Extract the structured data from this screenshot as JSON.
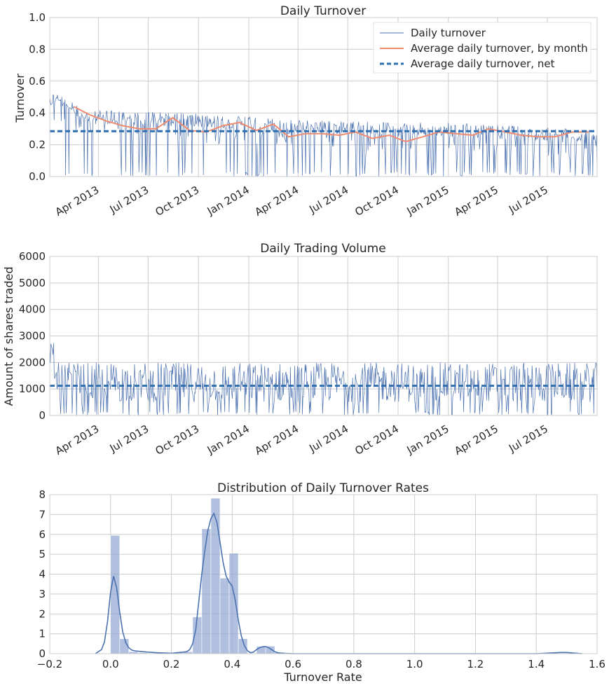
{
  "chart_data": [
    {
      "type": "line",
      "title": "Daily Turnover",
      "xlabel": "",
      "ylabel": "Turnover",
      "ylim": [
        0,
        1.0
      ],
      "yticks": [
        "0.0",
        "0.2",
        "0.4",
        "0.6",
        "0.8",
        "1.0"
      ],
      "xticks": [
        "Apr 2013",
        "Jul 2013",
        "Oct 2013",
        "Jan 2014",
        "Apr 2014",
        "Jul 2014",
        "Oct 2014",
        "Jan 2015",
        "Apr 2015",
        "Jul 2015"
      ],
      "xrange": [
        "2013-01-02",
        "2015-09-30"
      ],
      "grid": true,
      "legend": {
        "placement": "top-right",
        "entries": [
          "Daily turnover",
          "Average daily turnover, by month",
          "Average daily turnover, net"
        ]
      },
      "colors": {
        "daily": "#4c72b0",
        "monthly": "#f08a6e",
        "net": "#2f6fb0"
      },
      "series": [
        {
          "name": "Average daily turnover, by month",
          "x": [
            "2013-02",
            "2013-03",
            "2013-04",
            "2013-05",
            "2013-06",
            "2013-07",
            "2013-08",
            "2013-09",
            "2013-10",
            "2013-11",
            "2013-12",
            "2014-01",
            "2014-02",
            "2014-03",
            "2014-04",
            "2014-05",
            "2014-06",
            "2014-07",
            "2014-08",
            "2014-09",
            "2014-10",
            "2014-11",
            "2014-12",
            "2015-01",
            "2015-02",
            "2015-03",
            "2015-04",
            "2015-05",
            "2015-06",
            "2015-07",
            "2015-08",
            "2015-09"
          ],
          "values": [
            0.44,
            0.39,
            0.35,
            0.32,
            0.3,
            0.3,
            0.37,
            0.29,
            0.28,
            0.32,
            0.34,
            0.29,
            0.33,
            0.25,
            0.27,
            0.27,
            0.26,
            0.28,
            0.24,
            0.26,
            0.22,
            0.25,
            0.28,
            0.27,
            0.26,
            0.3,
            0.28,
            0.26,
            0.25,
            0.25,
            0.28,
            0.28
          ]
        },
        {
          "name": "Average daily turnover, net",
          "values": [
            0.285
          ]
        },
        {
          "name": "Daily turnover",
          "baseline_profile": {
            "x": [
              "2013-01",
              "2013-02",
              "2013-03",
              "2013-06",
              "2013-09",
              "2013-12",
              "2014-03",
              "2014-06",
              "2014-09",
              "2014-12",
              "2015-03",
              "2015-06",
              "2015-09"
            ],
            "values": [
              0.53,
              0.46,
              0.42,
              0.41,
              0.4,
              0.38,
              0.36,
              0.35,
              0.34,
              0.34,
              0.33,
              0.31,
              0.3
            ]
          }
        }
      ]
    },
    {
      "type": "line",
      "title": "Daily Trading Volume",
      "xlabel": "",
      "ylabel": "Amount of shares traded",
      "ylim": [
        0,
        6000
      ],
      "yticks": [
        "0",
        "1000",
        "2000",
        "3000",
        "4000",
        "5000",
        "6000"
      ],
      "xticks": [
        "Apr 2013",
        "Jul 2013",
        "Oct 2013",
        "Jan 2014",
        "Apr 2014",
        "Jul 2014",
        "Oct 2014",
        "Jan 2015",
        "Apr 2015",
        "Jul 2015"
      ],
      "grid": true,
      "colors": {
        "daily": "#4c72b0",
        "mean": "#2f6fb0"
      },
      "series": [
        {
          "name": "Daily volume",
          "range": [
            0,
            2750
          ]
        },
        {
          "name": "Average volume",
          "values": [
            1120
          ]
        }
      ]
    },
    {
      "type": "bar",
      "title": "Distribution of Daily Turnover Rates",
      "xlabel": "Turnover Rate",
      "ylabel": "",
      "xlim": [
        -0.2,
        1.6
      ],
      "ylim": [
        0,
        8
      ],
      "xticks": [
        "−0.2",
        "0.0",
        "0.2",
        "0.4",
        "0.6",
        "0.8",
        "1.0",
        "1.2",
        "1.4",
        "1.6"
      ],
      "yticks": [
        "0",
        "1",
        "2",
        "3",
        "4",
        "5",
        "6",
        "7",
        "8"
      ],
      "grid": true,
      "colors": {
        "bars": "#8ea5d0",
        "kde": "#4c72b0"
      },
      "bins": {
        "left": [
          0.0,
          0.03,
          0.06,
          0.09,
          0.12,
          0.15,
          0.18,
          0.21,
          0.24,
          0.27,
          0.3,
          0.33,
          0.36,
          0.39,
          0.42,
          0.45,
          0.48,
          0.51,
          0.54
        ],
        "values": [
          5.95,
          0.75,
          0.1,
          0.05,
          0.03,
          0.02,
          0.0,
          0.05,
          0.1,
          1.85,
          6.28,
          7.82,
          3.8,
          5.05,
          0.75,
          0.0,
          0.37,
          0.38,
          0.08
        ]
      },
      "kde": {
        "x": [
          -0.05,
          -0.03,
          -0.02,
          -0.01,
          0.0,
          0.01,
          0.02,
          0.03,
          0.04,
          0.05,
          0.06,
          0.07,
          0.08,
          0.1,
          0.12,
          0.15,
          0.18,
          0.2,
          0.22,
          0.24,
          0.25,
          0.26,
          0.27,
          0.28,
          0.29,
          0.3,
          0.31,
          0.32,
          0.33,
          0.34,
          0.35,
          0.36,
          0.37,
          0.38,
          0.39,
          0.4,
          0.41,
          0.42,
          0.43,
          0.44,
          0.45,
          0.46,
          0.47,
          0.48,
          0.49,
          0.5,
          0.51,
          0.52,
          0.53,
          0.54,
          0.55,
          0.56,
          0.58,
          0.6,
          0.8,
          1.0,
          1.2,
          1.4,
          1.45,
          1.48,
          1.5,
          1.52,
          1.55
        ],
        "values": [
          0.0,
          0.2,
          0.6,
          1.6,
          3.1,
          3.9,
          3.3,
          2.1,
          1.1,
          0.55,
          0.3,
          0.18,
          0.14,
          0.11,
          0.08,
          0.05,
          0.03,
          0.02,
          0.05,
          0.08,
          0.1,
          0.2,
          0.5,
          1.2,
          2.6,
          4.0,
          5.2,
          6.2,
          6.8,
          7.05,
          6.6,
          5.6,
          4.6,
          3.9,
          3.6,
          3.4,
          2.7,
          1.7,
          0.9,
          0.4,
          0.15,
          0.05,
          0.08,
          0.2,
          0.3,
          0.35,
          0.36,
          0.3,
          0.2,
          0.1,
          0.05,
          0.02,
          0.01,
          0.0,
          0.0,
          0.0,
          0.0,
          0.0,
          0.04,
          0.06,
          0.06,
          0.04,
          0.0
        ]
      }
    }
  ]
}
